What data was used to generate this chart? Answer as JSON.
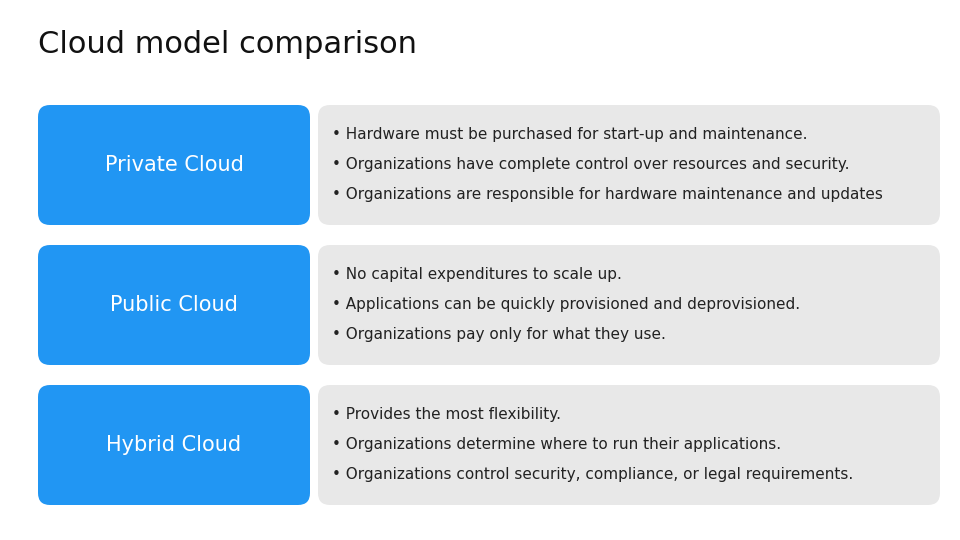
{
  "title": "Cloud model comparison",
  "title_fontsize": 22,
  "background_color": "#ffffff",
  "blue_color": "#2196F3",
  "gray_color": "#E8E8E8",
  "rows": [
    {
      "label": "Private Cloud",
      "bullets": [
        "Hardware must be purchased for start-up and maintenance.",
        "Organizations have complete control over resources and security.",
        "Organizations are responsible for hardware maintenance and updates"
      ]
    },
    {
      "label": "Public Cloud",
      "bullets": [
        "No capital expenditures to scale up.",
        "Applications can be quickly provisioned and deprovisioned.",
        "Organizations pay only for what they use."
      ]
    },
    {
      "label": "Hybrid Cloud",
      "bullets": [
        "Provides the most flexibility.",
        "Organizations determine where to run their applications.",
        "Organizations control security, compliance, or legal requirements."
      ]
    }
  ],
  "label_fontsize": 15,
  "bullet_fontsize": 11,
  "label_color": "#ffffff",
  "bullet_color": "#222222",
  "title_color": "#111111"
}
